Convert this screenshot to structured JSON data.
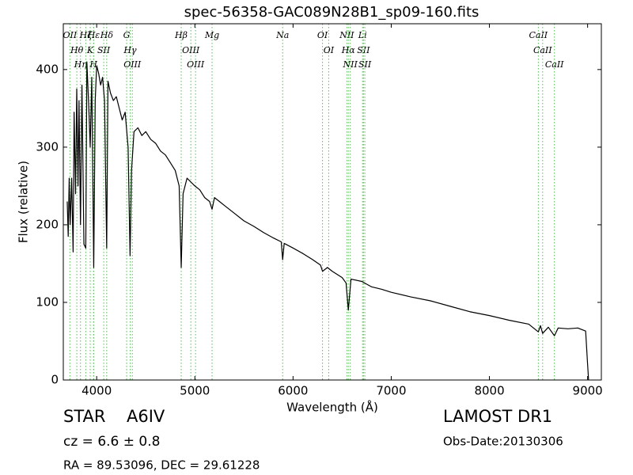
{
  "chart_data": {
    "type": "line",
    "title": "spec-56358-GAC089N28B1_sp09-160.fits",
    "x_label": "Wavelength (Å)",
    "y_label": "Flux (relative)",
    "xlim": [
      3660,
      9140
    ],
    "ylim": [
      0,
      459
    ],
    "xticks": [
      4000,
      5000,
      6000,
      7000,
      8000,
      9000
    ],
    "yticks": [
      0,
      100,
      200,
      300,
      400
    ],
    "color": "#000000",
    "line_color": "#5cb85c",
    "x": [
      3700,
      3710,
      3720,
      3730,
      3745,
      3760,
      3770,
      3785,
      3797,
      3810,
      3820,
      3835,
      3850,
      3870,
      3889,
      3900,
      3920,
      3934,
      3950,
      3970,
      3985,
      4000,
      4020,
      4040,
      4060,
      4080,
      4102,
      4115,
      4140,
      4170,
      4200,
      4230,
      4260,
      4290,
      4320,
      4340,
      4355,
      4380,
      4420,
      4460,
      4500,
      4550,
      4600,
      4650,
      4700,
      4750,
      4800,
      4840,
      4861,
      4880,
      4920,
      4960,
      5000,
      5050,
      5100,
      5150,
      5175,
      5200,
      5250,
      5300,
      5400,
      5500,
      5600,
      5700,
      5800,
      5880,
      5894,
      5910,
      6000,
      6100,
      6200,
      6280,
      6300,
      6350,
      6400,
      6500,
      6540,
      6563,
      6590,
      6700,
      6800,
      6900,
      7000,
      7200,
      7400,
      7600,
      7800,
      8000,
      8200,
      8400,
      8498,
      8520,
      8542,
      8600,
      8662,
      8700,
      8800,
      8900,
      8980,
      9000,
      9010
    ],
    "values": [
      230,
      185,
      260,
      200,
      260,
      165,
      345,
      240,
      375,
      250,
      360,
      200,
      380,
      175,
      170,
      410,
      350,
      300,
      390,
      145,
      360,
      405,
      395,
      380,
      390,
      360,
      170,
      385,
      370,
      360,
      365,
      350,
      335,
      345,
      300,
      160,
      270,
      320,
      325,
      315,
      320,
      310,
      305,
      295,
      290,
      280,
      270,
      250,
      145,
      240,
      260,
      255,
      250,
      245,
      235,
      230,
      220,
      235,
      230,
      225,
      215,
      205,
      198,
      190,
      183,
      178,
      155,
      176,
      170,
      163,
      155,
      148,
      140,
      145,
      140,
      132,
      125,
      90,
      130,
      127,
      120,
      117,
      113,
      107,
      102,
      95,
      88,
      83,
      77,
      72,
      62,
      70,
      60,
      68,
      57,
      67,
      66,
      67,
      63,
      20,
      0
    ],
    "lines": [
      {
        "wavelength": 3727,
        "label": "OII"
      },
      {
        "wavelength": 3798,
        "label": "Hθ"
      },
      {
        "wavelength": 3835,
        "label": "Hη"
      },
      {
        "wavelength": 3889,
        "label": "Hζ"
      },
      {
        "wavelength": 3934,
        "label": "K"
      },
      {
        "wavelength": 3968,
        "label": "H"
      },
      {
        "wavelength": 3970,
        "label": "Hε"
      },
      {
        "wavelength": 4072,
        "label": "SII"
      },
      {
        "wavelength": 4102,
        "label": "Hδ"
      },
      {
        "wavelength": 4305,
        "label": "G"
      },
      {
        "wavelength": 4341,
        "label": "Hγ"
      },
      {
        "wavelength": 4363,
        "label": "OIII"
      },
      {
        "wavelength": 4861,
        "label": "Hβ"
      },
      {
        "wavelength": 4959,
        "label": "OIII"
      },
      {
        "wavelength": 5007,
        "label": "OIII"
      },
      {
        "wavelength": 5175,
        "label": "Mg"
      },
      {
        "wavelength": 5894,
        "label": "Na"
      },
      {
        "wavelength": 6300,
        "label": "OI"
      },
      {
        "wavelength": 6363,
        "label": "OI"
      },
      {
        "wavelength": 6548,
        "label": "NII"
      },
      {
        "wavelength": 6563,
        "label": "Hα"
      },
      {
        "wavelength": 6583,
        "label": "NII"
      },
      {
        "wavelength": 6708,
        "label": "Li"
      },
      {
        "wavelength": 6717,
        "label": "SII"
      },
      {
        "wavelength": 6731,
        "label": "SII"
      },
      {
        "wavelength": 8498,
        "label": "CaII"
      },
      {
        "wavelength": 8542,
        "label": "CaII"
      },
      {
        "wavelength": 8662,
        "label": "CaII"
      }
    ],
    "object_class": "STAR",
    "subclass": "A6IV",
    "redshift": "cz = 6.6 ± 0.8",
    "coordinates": "RA = 89.53096, DEC = 29.61228",
    "survey": "LAMOST DR1",
    "obs_date": "Obs-Date:20130306"
  }
}
